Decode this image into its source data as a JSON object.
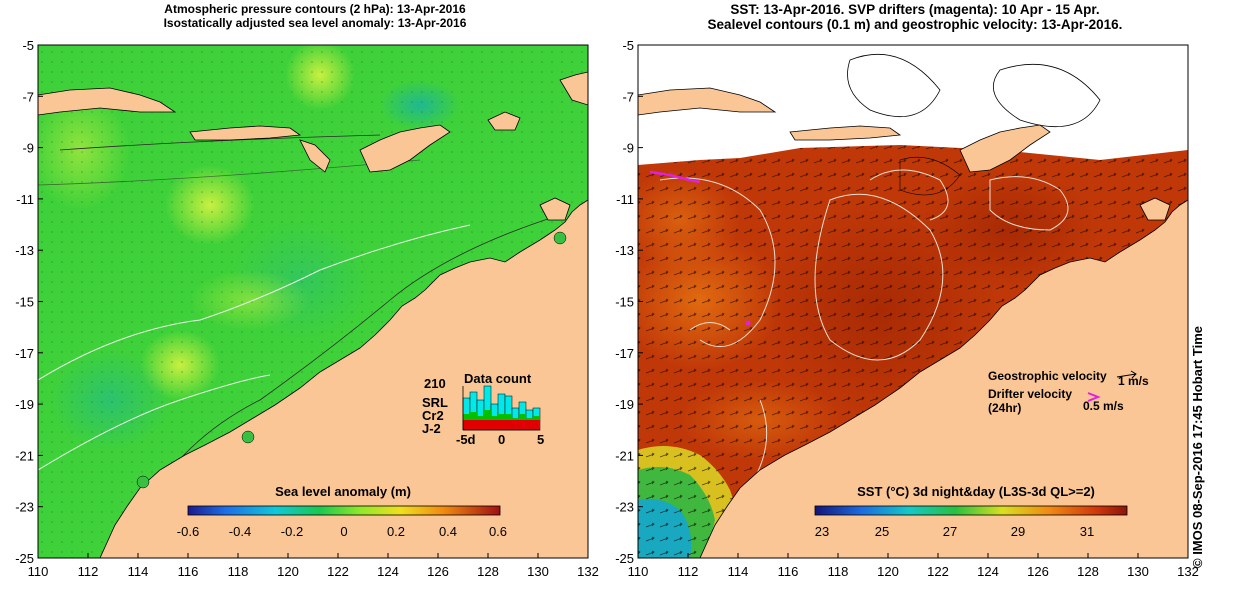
{
  "left_panel": {
    "title_line1": "Atmospheric pressure contours (2 hPa): 13-Apr-2016",
    "title_line2": "Isostatically adjusted sea level anomaly: 13-Apr-2016",
    "colorbar_title": "Sea level anomaly (m)",
    "colorbar_ticks": [
      "-0.6",
      "-0.4",
      "-0.2",
      "0",
      "0.2",
      "0.4",
      "0.6"
    ],
    "data_count": {
      "title": "Data count",
      "max_label": "210",
      "legend": [
        {
          "name": "SRL",
          "color": "#00e8e8"
        },
        {
          "name": "Cr2",
          "color": "#00c000"
        },
        {
          "name": "J-2",
          "color": "#e00000"
        }
      ],
      "axis_labels": [
        "-5d",
        "0",
        "5"
      ]
    }
  },
  "right_panel": {
    "title_line1": "SST: 13-Apr-2016. SVP drifters (magenta): 10 Apr - 15 Apr.",
    "title_line2": "Sealevel contours (0.1 m) and geostrophic velocity: 13-Apr-2016.",
    "colorbar_title": "SST (°C) 3d night&day (L3S-3d QL>=2)",
    "colorbar_ticks": [
      "23",
      "25",
      "27",
      "29",
      "31"
    ],
    "legend": {
      "geostrophic_label": "Geostrophic velocity",
      "geostrophic_scale": "1 m/s",
      "drifter_label_line1": "Drifter velocity",
      "drifter_label_line2": "(24hr)",
      "drifter_scale": "0.5 m/s"
    }
  },
  "axes": {
    "x_ticks": [
      "110",
      "112",
      "114",
      "116",
      "118",
      "120",
      "122",
      "124",
      "126",
      "128",
      "130",
      "132"
    ],
    "y_ticks": [
      "-5",
      "-7",
      "-9",
      "-11",
      "-13",
      "-15",
      "-17",
      "-19",
      "-21",
      "-23",
      "-25"
    ]
  },
  "credit": "© IMOS 08-Sep-2016 17:45 Hobart Time",
  "colors": {
    "land": "#fbc695",
    "sea_green": "#3fd13a",
    "sst_red": "#c03808"
  }
}
